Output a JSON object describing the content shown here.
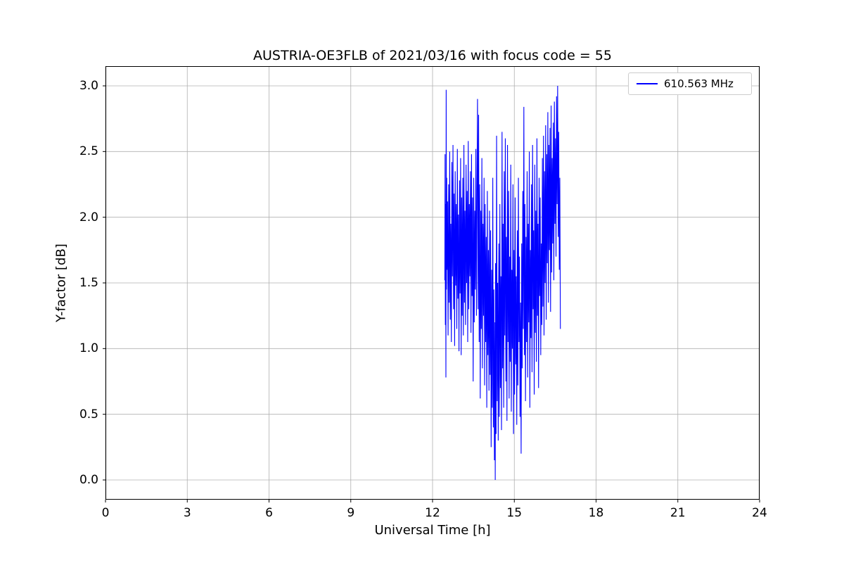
{
  "chart_data": {
    "type": "line",
    "title": "AUSTRIA-OE3FLB of 2021/03/16 with focus code = 55",
    "xlabel": "Universal Time [h]",
    "ylabel": "Y-factor [dB]",
    "xlim": [
      0,
      24
    ],
    "ylim": [
      -0.15,
      3.15
    ],
    "x_tick_values": [
      0,
      3,
      6,
      9,
      12,
      15,
      18,
      21,
      24
    ],
    "x_tick_labels": [
      "0",
      "3",
      "6",
      "9",
      "12",
      "15",
      "18",
      "21",
      "24"
    ],
    "y_tick_values": [
      0,
      0.5,
      1,
      1.5,
      2,
      2.5,
      3
    ],
    "y_tick_labels": [
      "0.0",
      "0.5",
      "1.0",
      "1.5",
      "2.0",
      "2.5",
      "3.0"
    ],
    "grid": true,
    "legend_position": "upper right",
    "colors": {
      "grid": "#b0b0b0",
      "spine": "#000000",
      "series": "#0000ff"
    },
    "series": [
      {
        "name": "610.563 MHz",
        "color": "#0000ff",
        "points": [
          [
            12.45,
            1.52
          ],
          [
            12.46,
            2.48
          ],
          [
            12.47,
            1.18
          ],
          [
            12.48,
            2.1
          ],
          [
            12.49,
            0.78
          ],
          [
            12.5,
            2.97
          ],
          [
            12.51,
            1.45
          ],
          [
            12.52,
            2.3
          ],
          [
            12.53,
            1.6
          ],
          [
            12.55,
            2.12
          ],
          [
            12.57,
            1.1
          ],
          [
            12.59,
            2.25
          ],
          [
            12.61,
            1.35
          ],
          [
            12.63,
            2.5
          ],
          [
            12.65,
            1.22
          ],
          [
            12.67,
            1.95
          ],
          [
            12.69,
            1.05
          ],
          [
            12.71,
            2.42
          ],
          [
            12.73,
            1.55
          ],
          [
            12.75,
            2.55
          ],
          [
            12.77,
            1.3
          ],
          [
            12.79,
            2.18
          ],
          [
            12.81,
            1.02
          ],
          [
            12.83,
            2.35
          ],
          [
            12.85,
            1.48
          ],
          [
            12.87,
            2.1
          ],
          [
            12.89,
            1.15
          ],
          [
            12.91,
            2.52
          ],
          [
            12.93,
            1.38
          ],
          [
            12.95,
            2.02
          ],
          [
            12.97,
            0.98
          ],
          [
            12.99,
            2.28
          ],
          [
            13.01,
            1.42
          ],
          [
            13.03,
            2.45
          ],
          [
            13.05,
            0.95
          ],
          [
            13.07,
            2.15
          ],
          [
            13.09,
            1.25
          ],
          [
            13.11,
            2.3
          ],
          [
            13.13,
            1.1
          ],
          [
            13.15,
            2.55
          ],
          [
            13.17,
            1.35
          ],
          [
            13.19,
            2.05
          ],
          [
            13.21,
            1.18
          ],
          [
            13.23,
            2.4
          ],
          [
            13.25,
            1.5
          ],
          [
            13.27,
            2.2
          ],
          [
            13.29,
            1.05
          ],
          [
            13.31,
            2.58
          ],
          [
            13.33,
            1.3
          ],
          [
            13.35,
            2.1
          ],
          [
            13.37,
            1.55
          ],
          [
            13.39,
            2.35
          ],
          [
            13.41,
            1.12
          ],
          [
            13.43,
            2.48
          ],
          [
            13.45,
            1.4
          ],
          [
            13.47,
            2.15
          ],
          [
            13.49,
            0.75
          ],
          [
            13.51,
            2.3
          ],
          [
            13.53,
            1.2
          ],
          [
            13.55,
            2.05
          ],
          [
            13.57,
            1.45
          ],
          [
            13.59,
            2.52
          ],
          [
            13.61,
            1.25
          ],
          [
            13.63,
            2.2
          ],
          [
            13.65,
            2.9
          ],
          [
            13.67,
            1.3
          ],
          [
            13.69,
            2.78
          ],
          [
            13.71,
            1.05
          ],
          [
            13.73,
            2.25
          ],
          [
            13.75,
            0.62
          ],
          [
            13.77,
            2.05
          ],
          [
            13.79,
            1.15
          ],
          [
            13.81,
            2.45
          ],
          [
            13.83,
            0.85
          ],
          [
            13.85,
            1.95
          ],
          [
            13.87,
            1.25
          ],
          [
            13.89,
            2.3
          ],
          [
            13.91,
            0.72
          ],
          [
            13.93,
            2.1
          ],
          [
            13.95,
            1.05
          ],
          [
            13.97,
            1.85
          ],
          [
            13.99,
            0.55
          ],
          [
            14.01,
            2.2
          ],
          [
            14.03,
            0.95
          ],
          [
            14.05,
            1.75
          ],
          [
            14.07,
            0.68
          ],
          [
            14.09,
            2.05
          ],
          [
            14.11,
            0.8
          ],
          [
            14.13,
            1.9
          ],
          [
            14.15,
            0.25
          ],
          [
            14.17,
            1.6
          ],
          [
            14.19,
            0.55
          ],
          [
            14.21,
            2.3
          ],
          [
            14.23,
            0.4
          ],
          [
            14.25,
            1.45
          ],
          [
            14.27,
            0.15
          ],
          [
            14.29,
            1.2
          ],
          [
            14.3,
            0.0
          ],
          [
            14.31,
            1.65
          ],
          [
            14.33,
            0.35
          ],
          [
            14.35,
            2.62
          ],
          [
            14.37,
            0.6
          ],
          [
            14.39,
            1.5
          ],
          [
            14.41,
            0.3
          ],
          [
            14.43,
            1.8
          ],
          [
            14.45,
            0.48
          ],
          [
            14.47,
            2.1
          ],
          [
            14.49,
            0.7
          ],
          [
            14.51,
            1.55
          ],
          [
            14.53,
            0.38
          ],
          [
            14.55,
            2.65
          ],
          [
            14.57,
            0.85
          ],
          [
            14.59,
            1.95
          ],
          [
            14.61,
            0.55
          ],
          [
            14.63,
            2.35
          ],
          [
            14.65,
            1.1
          ],
          [
            14.67,
            2.6
          ],
          [
            14.69,
            0.75
          ],
          [
            14.71,
            1.85
          ],
          [
            14.73,
            0.45
          ],
          [
            14.75,
            2.55
          ],
          [
            14.77,
            1.05
          ],
          [
            14.79,
            2.2
          ],
          [
            14.81,
            0.62
          ],
          [
            14.83,
            1.7
          ],
          [
            14.85,
            0.9
          ],
          [
            14.87,
            2.4
          ],
          [
            14.89,
            0.52
          ],
          [
            14.91,
            1.6
          ],
          [
            14.93,
            1.0
          ],
          [
            14.95,
            2.25
          ],
          [
            14.97,
            0.35
          ],
          [
            14.99,
            1.75
          ],
          [
            15.01,
            0.65
          ],
          [
            15.03,
            2.15
          ],
          [
            15.05,
            0.88
          ],
          [
            15.07,
            1.55
          ],
          [
            15.09,
            0.42
          ],
          [
            15.11,
            1.9
          ],
          [
            15.13,
            0.72
          ],
          [
            15.15,
            2.3
          ],
          [
            15.17,
            1.05
          ],
          [
            15.19,
            1.7
          ],
          [
            15.21,
            0.48
          ],
          [
            15.23,
            1.35
          ],
          [
            15.25,
            0.2
          ],
          [
            15.27,
            1.8
          ],
          [
            15.29,
            0.85
          ],
          [
            15.31,
            2.2
          ],
          [
            15.33,
            1.15
          ],
          [
            15.35,
            2.84
          ],
          [
            15.37,
            0.95
          ],
          [
            15.39,
            2.1
          ],
          [
            15.41,
            0.6
          ],
          [
            15.43,
            1.85
          ],
          [
            15.45,
            1.05
          ],
          [
            15.47,
            2.35
          ],
          [
            15.49,
            0.78
          ],
          [
            15.51,
            1.95
          ],
          [
            15.53,
            1.2
          ],
          [
            15.55,
            2.5
          ],
          [
            15.57,
            0.55
          ],
          [
            15.59,
            1.75
          ],
          [
            15.61,
            1.08
          ],
          [
            15.63,
            2.25
          ],
          [
            15.65,
            0.82
          ],
          [
            15.67,
            2.55
          ],
          [
            15.69,
            1.3
          ],
          [
            15.71,
            1.9
          ],
          [
            15.73,
            0.65
          ],
          [
            15.75,
            2.4
          ],
          [
            15.77,
            1.12
          ],
          [
            15.79,
            2.05
          ],
          [
            15.81,
            0.9
          ],
          [
            15.83,
            2.6
          ],
          [
            15.85,
            1.25
          ],
          [
            15.87,
            1.95
          ],
          [
            15.89,
            0.7
          ],
          [
            15.91,
            2.3
          ],
          [
            15.93,
            1.4
          ],
          [
            15.95,
            2.15
          ],
          [
            15.97,
            0.95
          ],
          [
            15.99,
            1.8
          ],
          [
            16.01,
            1.18
          ],
          [
            16.03,
            2.45
          ],
          [
            16.05,
            1.32
          ],
          [
            16.07,
            2.62
          ],
          [
            16.09,
            1.1
          ],
          [
            16.11,
            2.35
          ],
          [
            16.13,
            1.5
          ],
          [
            16.15,
            2.7
          ],
          [
            16.17,
            1.22
          ],
          [
            16.19,
            2.48
          ],
          [
            16.21,
            1.65
          ],
          [
            16.23,
            2.8
          ],
          [
            16.25,
            1.35
          ],
          [
            16.27,
            2.55
          ],
          [
            16.29,
            1.75
          ],
          [
            16.31,
            2.68
          ],
          [
            16.33,
            1.28
          ],
          [
            16.35,
            2.85
          ],
          [
            16.37,
            1.58
          ],
          [
            16.39,
            2.45
          ],
          [
            16.41,
            1.8
          ],
          [
            16.43,
            2.72
          ],
          [
            16.45,
            1.52
          ],
          [
            16.47,
            2.88
          ],
          [
            16.49,
            1.95
          ],
          [
            16.51,
            2.6
          ],
          [
            16.53,
            1.7
          ],
          [
            16.55,
            2.92
          ],
          [
            16.57,
            2.1
          ],
          [
            16.59,
            3.0
          ],
          [
            16.61,
            1.85
          ],
          [
            16.63,
            2.65
          ],
          [
            16.65,
            1.6
          ],
          [
            16.67,
            2.3
          ],
          [
            16.69,
            1.15
          ]
        ]
      }
    ]
  }
}
